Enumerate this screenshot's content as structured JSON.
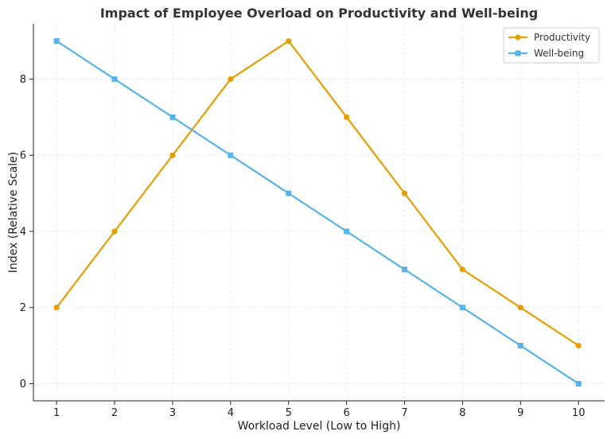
{
  "chart_data": {
    "type": "line",
    "title": "Impact of Employee Overload on Productivity and Well-being",
    "xlabel": "Workload Level (Low to High)",
    "ylabel": "Index (Relative Scale)",
    "x": [
      1,
      2,
      3,
      4,
      5,
      6,
      7,
      8,
      9,
      10
    ],
    "xlim": [
      0.6,
      10.45
    ],
    "ylim": [
      -0.45,
      9.45
    ],
    "xticks": [
      "1",
      "2",
      "3",
      "4",
      "5",
      "6",
      "7",
      "8",
      "9",
      "10"
    ],
    "yticks": [
      0,
      2,
      4,
      6,
      8
    ],
    "ytick_labels": [
      "0",
      "2",
      "4",
      "6",
      "8"
    ],
    "grid": true,
    "legend_position": "top-right",
    "series": [
      {
        "name": "Productivity",
        "marker": "circle",
        "color": "#E69F00",
        "values": [
          2,
          4,
          6,
          8,
          9,
          7,
          5,
          3,
          2,
          1
        ]
      },
      {
        "name": "Well-being",
        "marker": "square",
        "color": "#56B4E9",
        "values": [
          9,
          8,
          7,
          6,
          5,
          4,
          3,
          2,
          1,
          0
        ]
      }
    ]
  }
}
